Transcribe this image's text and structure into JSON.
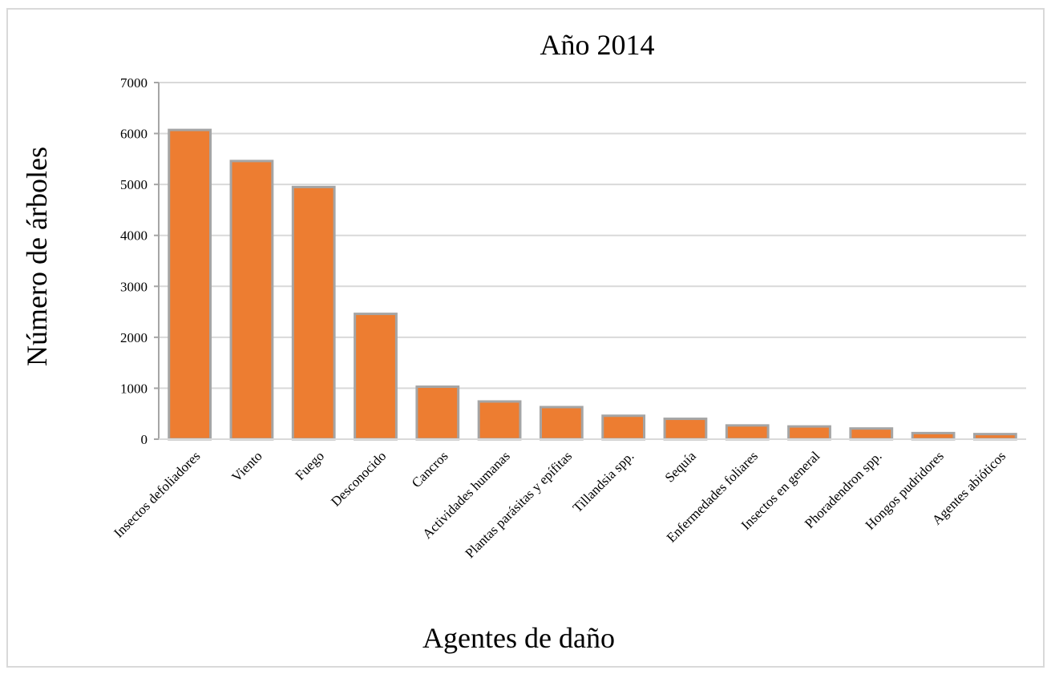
{
  "chart_data": {
    "type": "bar",
    "title": "Año 2014",
    "xlabel": "Agentes de daño",
    "ylabel": "Número de árboles",
    "ylim": [
      0,
      7000
    ],
    "yticks": [
      0,
      1000,
      2000,
      3000,
      4000,
      5000,
      6000,
      7000
    ],
    "grid": true,
    "categories": [
      "Insectos defoliadores",
      "Viento",
      "Fuego",
      "Desconocido",
      "Cancros",
      "Actividades humanas",
      "Plantas parásitas y epífitas",
      "Tillandsia spp.",
      "Sequía",
      "Enfermedades foliares",
      "Insectos en general",
      "Phoradendron spp.",
      "Hongos pudridores",
      "Agentes abióticos"
    ],
    "values": [
      6070,
      5460,
      4950,
      2460,
      1030,
      740,
      630,
      460,
      400,
      270,
      250,
      210,
      120,
      100
    ],
    "colors": {
      "bar": "#ED7D31",
      "bar_edge": "#A5A5A5",
      "grid": "#D9D9D9",
      "axis": "#A5A5A5"
    }
  }
}
